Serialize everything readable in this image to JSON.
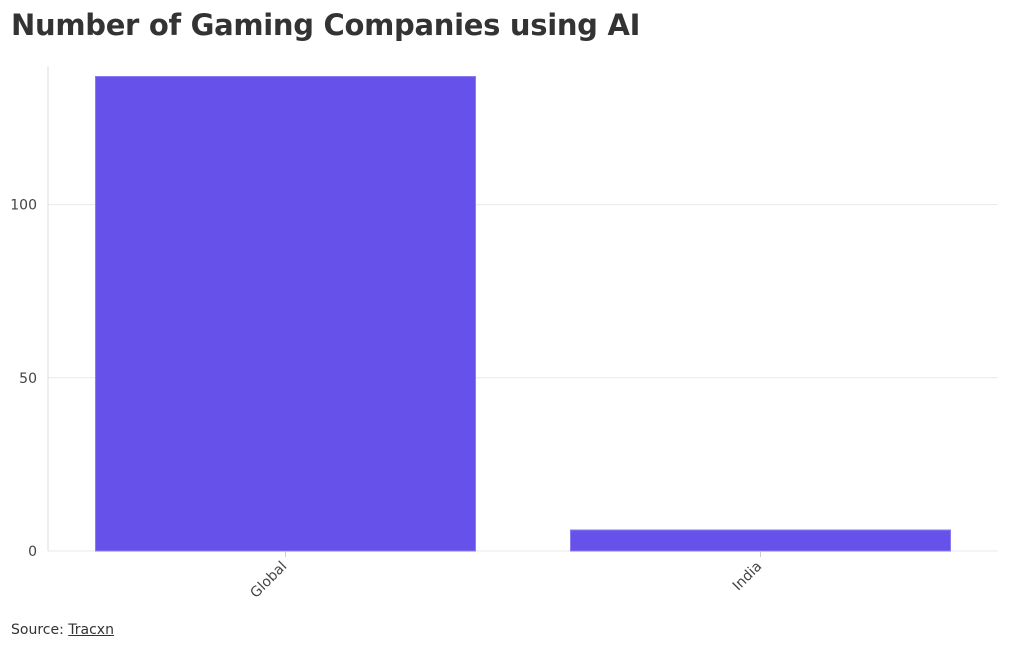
{
  "chart_data": {
    "type": "bar",
    "title": "Number of Gaming Companies using AI",
    "categories": [
      "Global",
      "India"
    ],
    "values": [
      137,
      6
    ],
    "xlabel": "",
    "ylabel": "",
    "ylim": [
      0,
      140
    ],
    "yticks": [
      0,
      50,
      100
    ],
    "grid": true,
    "legend": "none",
    "colors": {
      "bar": "#6652ea",
      "grid": "#e8e8e8",
      "axis": "#dddddd"
    }
  },
  "source": {
    "prefix": "Source: ",
    "link_text": "Tracxn"
  }
}
